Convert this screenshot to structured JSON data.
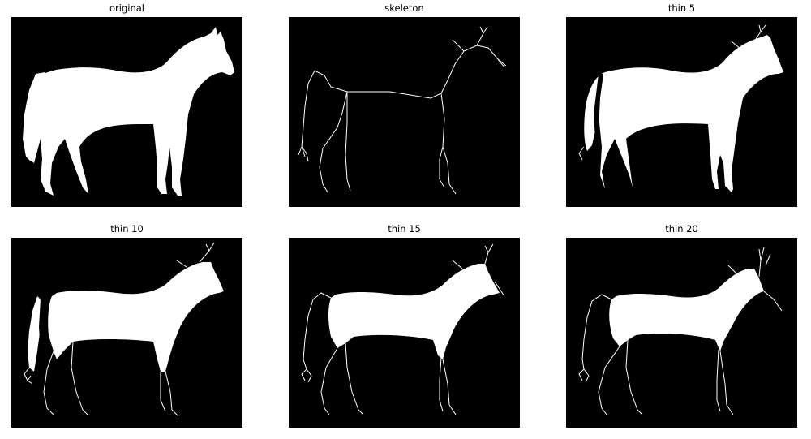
{
  "figure": {
    "background": "#ffffff",
    "image_background": "#000000",
    "foreground": "#ffffff"
  },
  "panels": [
    {
      "title": "original",
      "fill_level": 1.0,
      "stroke_visible": false
    },
    {
      "title": "skeleton",
      "fill_level": 0.0,
      "stroke_visible": true
    },
    {
      "title": "thin 5",
      "fill_level": 0.85,
      "stroke_visible": true
    },
    {
      "title": "thin 10",
      "fill_level": 0.7,
      "stroke_visible": true
    },
    {
      "title": "thin 15",
      "fill_level": 0.55,
      "stroke_visible": true
    },
    {
      "title": "thin 20",
      "fill_level": 0.45,
      "stroke_visible": true
    }
  ]
}
